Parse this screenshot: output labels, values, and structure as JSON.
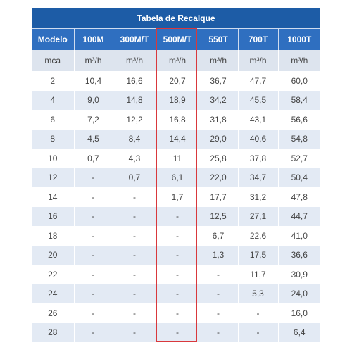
{
  "table": {
    "title": "Tabela de Recalque",
    "header": [
      "Modelo",
      "100M",
      "300M/T",
      "500M/T",
      "550T",
      "700T",
      "1000T"
    ],
    "units": [
      "mca",
      "m³/h",
      "m³/h",
      "m³/h",
      "m³/h",
      "m³/h",
      "m³/h"
    ],
    "rows": [
      [
        "2",
        "10,4",
        "16,6",
        "20,7",
        "36,7",
        "47,7",
        "60,0"
      ],
      [
        "4",
        "9,0",
        "14,8",
        "18,9",
        "34,2",
        "45,5",
        "58,4"
      ],
      [
        "6",
        "7,2",
        "12,2",
        "16,8",
        "31,8",
        "43,1",
        "56,6"
      ],
      [
        "8",
        "4,5",
        "8,4",
        "14,4",
        "29,0",
        "40,6",
        "54,8"
      ],
      [
        "10",
        "0,7",
        "4,3",
        "11",
        "25,8",
        "37,8",
        "52,7"
      ],
      [
        "12",
        "-",
        "0,7",
        "6,1",
        "22,0",
        "34,7",
        "50,4"
      ],
      [
        "14",
        "-",
        "-",
        "1,7",
        "17,7",
        "31,2",
        "47,8"
      ],
      [
        "16",
        "-",
        "-",
        "-",
        "12,5",
        "27,1",
        "44,7"
      ],
      [
        "18",
        "-",
        "-",
        "-",
        "6,7",
        "22,6",
        "41,0"
      ],
      [
        "20",
        "-",
        "-",
        "-",
        "1,3",
        "17,5",
        "36,6"
      ],
      [
        "22",
        "-",
        "-",
        "-",
        "-",
        "11,7",
        "30,9"
      ],
      [
        "24",
        "-",
        "-",
        "-",
        "-",
        "5,3",
        "24,0"
      ],
      [
        "26",
        "-",
        "-",
        "-",
        "-",
        "-",
        "16,0"
      ],
      [
        "28",
        "-",
        "-",
        "-",
        "-",
        "-",
        "6,4"
      ]
    ]
  }
}
